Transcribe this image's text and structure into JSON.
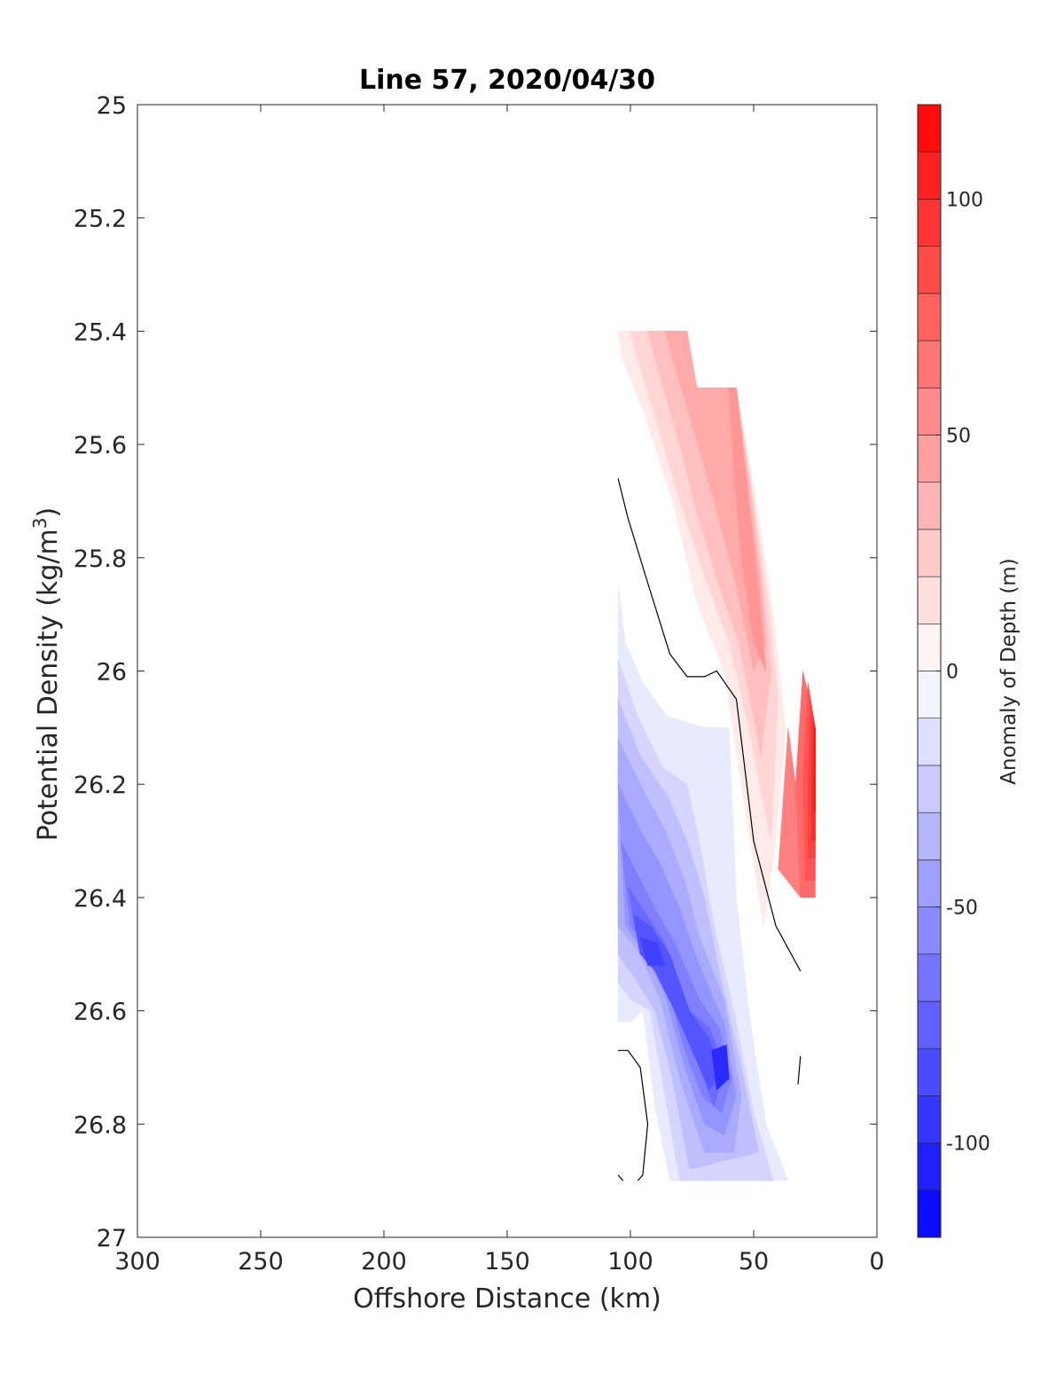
{
  "chart_data": {
    "type": "contourf",
    "title": "Line 57, 2020/04/30",
    "xlabel": "Offshore Distance (km)",
    "ylabel_main": "Potential Density (kg/m",
    "ylabel_sup": "3",
    "ylabel_end": ")",
    "colorbar_label": "Anomaly of Depth (m)",
    "xlim": [
      300,
      0
    ],
    "ylim": [
      27,
      25
    ],
    "x_reversed": true,
    "y_reversed": true,
    "grid": false,
    "x_ticks": [
      300,
      250,
      200,
      150,
      100,
      50,
      0
    ],
    "x_tick_labels": [
      "300",
      "250",
      "200",
      "150",
      "100",
      "50",
      "0"
    ],
    "y_ticks": [
      25,
      25.2,
      25.4,
      25.6,
      25.8,
      26,
      26.2,
      26.4,
      26.6,
      26.8,
      27
    ],
    "y_tick_labels": [
      "25",
      "25.2",
      "25.4",
      "25.6",
      "25.8",
      "26",
      "26.2",
      "26.4",
      "26.6",
      "26.8",
      "27"
    ],
    "colorbar_range": [
      -120,
      120
    ],
    "colorbar_step": 10,
    "colorbar_ticks": [
      100,
      50,
      0,
      -50,
      -100
    ],
    "colorbar_tick_labels": [
      "100",
      "50",
      "0",
      "-50",
      "-100"
    ],
    "colormap": "blue-white-red",
    "zero_contour_color": "#000000",
    "regions": [
      {
        "level": 10,
        "polygon": [
          [
            105,
            25.4
          ],
          [
            77,
            25.4
          ],
          [
            73,
            25.5
          ],
          [
            57,
            25.5
          ],
          [
            49,
            25.7
          ],
          [
            42,
            25.9
          ],
          [
            37,
            26.1
          ],
          [
            41,
            26.3
          ],
          [
            46,
            26.45
          ],
          [
            55,
            26.2
          ],
          [
            62,
            26.0
          ],
          [
            73,
            25.88
          ],
          [
            83,
            25.7
          ],
          [
            94,
            25.55
          ],
          [
            103,
            25.45
          ]
        ]
      },
      {
        "level": 20,
        "polygon": [
          [
            100,
            25.4
          ],
          [
            77,
            25.4
          ],
          [
            73,
            25.5
          ],
          [
            57,
            25.5
          ],
          [
            50,
            25.7
          ],
          [
            44,
            25.88
          ],
          [
            40,
            26.05
          ],
          [
            43,
            26.3
          ],
          [
            52,
            26.1
          ],
          [
            60,
            25.95
          ],
          [
            70,
            25.83
          ],
          [
            80,
            25.7
          ],
          [
            90,
            25.55
          ],
          [
            97,
            25.45
          ]
        ]
      },
      {
        "level": 30,
        "polygon": [
          [
            93,
            25.4
          ],
          [
            77,
            25.4
          ],
          [
            73,
            25.5
          ],
          [
            57,
            25.5
          ],
          [
            51,
            25.68
          ],
          [
            46,
            25.86
          ],
          [
            43,
            26.0
          ],
          [
            47,
            26.15
          ],
          [
            56,
            25.95
          ],
          [
            64,
            25.85
          ],
          [
            73,
            25.72
          ],
          [
            80,
            25.6
          ],
          [
            88,
            25.48
          ]
        ]
      },
      {
        "level": 40,
        "polygon": [
          [
            86,
            25.4
          ],
          [
            77,
            25.4
          ],
          [
            73,
            25.5
          ],
          [
            57,
            25.5
          ],
          [
            52,
            25.68
          ],
          [
            48,
            25.82
          ],
          [
            45,
            25.95
          ],
          [
            50,
            26.0
          ],
          [
            57,
            25.85
          ],
          [
            66,
            25.7
          ],
          [
            74,
            25.58
          ],
          [
            82,
            25.46
          ]
        ]
      },
      {
        "level": 50,
        "polygon": [
          [
            60,
            25.5
          ],
          [
            57,
            25.5
          ],
          [
            52,
            25.7
          ],
          [
            48,
            25.86
          ],
          [
            45,
            26.0
          ],
          [
            50,
            25.95
          ],
          [
            55,
            25.8
          ],
          [
            58,
            25.65
          ]
        ]
      },
      {
        "level": 60,
        "polygon": [
          [
            36,
            26.1
          ],
          [
            40,
            26.35
          ],
          [
            31,
            26.4
          ],
          [
            33,
            26.2
          ]
        ]
      },
      {
        "level": 70,
        "polygon": [
          [
            30,
            26.0
          ],
          [
            25,
            26.1
          ],
          [
            25,
            26.4
          ],
          [
            31,
            26.4
          ],
          [
            33,
            26.2
          ]
        ]
      },
      {
        "level": 80,
        "polygon": [
          [
            28,
            26.02
          ],
          [
            25,
            26.1
          ],
          [
            25,
            26.37
          ],
          [
            29,
            26.37
          ],
          [
            30,
            26.2
          ]
        ]
      },
      {
        "level": 90,
        "polygon": [
          [
            27,
            26.05
          ],
          [
            25,
            26.1
          ],
          [
            25,
            26.33
          ],
          [
            28,
            26.33
          ],
          [
            28,
            26.2
          ]
        ]
      },
      {
        "level": 100,
        "polygon": [
          [
            26,
            26.08
          ],
          [
            25,
            26.1
          ],
          [
            25,
            26.3
          ],
          [
            26.5,
            26.3
          ],
          [
            26.5,
            26.2
          ]
        ]
      },
      {
        "level": 110,
        "polygon": [
          [
            25.5,
            26.1
          ],
          [
            25,
            26.1
          ],
          [
            25,
            26.25
          ],
          [
            25.5,
            26.25
          ]
        ]
      },
      {
        "level": -10,
        "polygon": [
          [
            105,
            25.85
          ],
          [
            102,
            25.95
          ],
          [
            95,
            26.02
          ],
          [
            85,
            26.08
          ],
          [
            70,
            26.1
          ],
          [
            60,
            26.1
          ],
          [
            57,
            26.4
          ],
          [
            52,
            26.6
          ],
          [
            45,
            26.8
          ],
          [
            36,
            26.9
          ],
          [
            84,
            26.9
          ],
          [
            90,
            26.77
          ],
          [
            95,
            26.6
          ],
          [
            100,
            26.62
          ],
          [
            105,
            26.62
          ]
        ]
      },
      {
        "level": -20,
        "polygon": [
          [
            105,
            25.98
          ],
          [
            97,
            26.08
          ],
          [
            87,
            26.17
          ],
          [
            77,
            26.2
          ],
          [
            72,
            26.3
          ],
          [
            66,
            26.45
          ],
          [
            58,
            26.6
          ],
          [
            50,
            26.78
          ],
          [
            42,
            26.9
          ],
          [
            80,
            26.9
          ],
          [
            86,
            26.75
          ],
          [
            92,
            26.6
          ],
          [
            100,
            26.58
          ],
          [
            105,
            26.55
          ]
        ]
      },
      {
        "level": -30,
        "polygon": [
          [
            105,
            26.05
          ],
          [
            96,
            26.15
          ],
          [
            85,
            26.22
          ],
          [
            77,
            26.3
          ],
          [
            70,
            26.4
          ],
          [
            63,
            26.55
          ],
          [
            55,
            26.7
          ],
          [
            48,
            26.85
          ],
          [
            76,
            26.88
          ],
          [
            83,
            26.72
          ],
          [
            90,
            26.6
          ],
          [
            97,
            26.55
          ],
          [
            105,
            26.5
          ]
        ]
      },
      {
        "level": -40,
        "polygon": [
          [
            105,
            26.12
          ],
          [
            96,
            26.2
          ],
          [
            86,
            26.28
          ],
          [
            78,
            26.37
          ],
          [
            72,
            26.47
          ],
          [
            62,
            26.58
          ],
          [
            55,
            26.75
          ],
          [
            58,
            26.85
          ],
          [
            70,
            26.85
          ],
          [
            80,
            26.72
          ],
          [
            88,
            26.58
          ],
          [
            96,
            26.5
          ],
          [
            105,
            26.45
          ]
        ]
      },
      {
        "level": -50,
        "polygon": [
          [
            105,
            26.2
          ],
          [
            96,
            26.28
          ],
          [
            88,
            26.34
          ],
          [
            80,
            26.42
          ],
          [
            72,
            26.52
          ],
          [
            62,
            26.62
          ],
          [
            57,
            26.75
          ],
          [
            62,
            26.82
          ],
          [
            70,
            26.8
          ],
          [
            78,
            26.7
          ],
          [
            86,
            26.57
          ],
          [
            94,
            26.5
          ],
          [
            102,
            26.45
          ]
        ]
      },
      {
        "level": -60,
        "polygon": [
          [
            104,
            26.3
          ],
          [
            97,
            26.36
          ],
          [
            90,
            26.42
          ],
          [
            82,
            26.48
          ],
          [
            72,
            26.58
          ],
          [
            64,
            26.63
          ],
          [
            59,
            26.72
          ],
          [
            63,
            26.78
          ],
          [
            71,
            26.75
          ],
          [
            78,
            26.67
          ],
          [
            85,
            26.56
          ],
          [
            92,
            26.5
          ],
          [
            100,
            26.45
          ]
        ]
      },
      {
        "level": -70,
        "polygon": [
          [
            101,
            26.38
          ],
          [
            95,
            26.42
          ],
          [
            86,
            26.48
          ],
          [
            76,
            26.6
          ],
          [
            68,
            26.63
          ],
          [
            62,
            26.7
          ],
          [
            66,
            26.77
          ],
          [
            72,
            26.7
          ],
          [
            80,
            26.62
          ],
          [
            88,
            26.53
          ],
          [
            96,
            26.5
          ]
        ]
      },
      {
        "level": -80,
        "polygon": [
          [
            99,
            26.43
          ],
          [
            92,
            26.45
          ],
          [
            84,
            26.5
          ],
          [
            76,
            26.6
          ],
          [
            68,
            26.65
          ],
          [
            63,
            26.71
          ],
          [
            68,
            26.74
          ],
          [
            74,
            26.68
          ],
          [
            82,
            26.6
          ],
          [
            90,
            26.53
          ],
          [
            96,
            26.5
          ]
        ]
      },
      {
        "level": -90,
        "polygon": [
          [
            96,
            26.47
          ],
          [
            89,
            26.48
          ],
          [
            86,
            26.52
          ],
          [
            93,
            26.52
          ]
        ]
      },
      {
        "level": -100,
        "polygon": [
          [
            67,
            26.67
          ],
          [
            61,
            26.66
          ],
          [
            60,
            26.72
          ],
          [
            65,
            26.74
          ]
        ]
      }
    ],
    "zero_contours": [
      [
        [
          105,
          25.66
        ],
        [
          101,
          25.73
        ],
        [
          94,
          25.83
        ],
        [
          84,
          25.97
        ],
        [
          77,
          26.01
        ],
        [
          70,
          26.01
        ],
        [
          65,
          26.0
        ],
        [
          57,
          26.05
        ],
        [
          50,
          26.3
        ],
        [
          41,
          26.45
        ],
        [
          31,
          26.53
        ]
      ],
      [
        [
          105,
          26.67
        ],
        [
          101,
          26.67
        ],
        [
          96,
          26.7
        ],
        [
          93,
          26.8
        ],
        [
          95,
          26.89
        ],
        [
          97,
          26.9
        ]
      ],
      [
        [
          105,
          26.89
        ],
        [
          103,
          26.9
        ]
      ],
      [
        [
          31,
          26.68
        ],
        [
          32,
          26.73
        ]
      ]
    ]
  }
}
